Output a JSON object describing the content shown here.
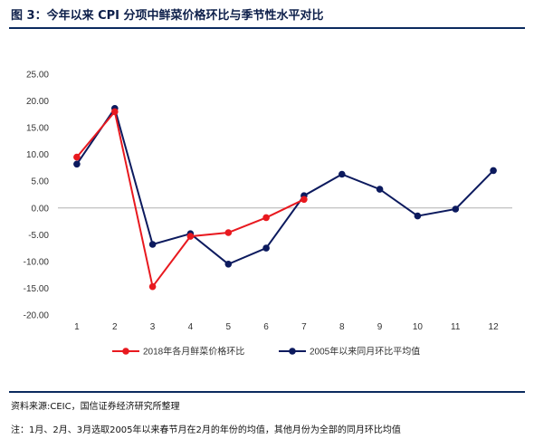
{
  "figure": {
    "title": "图 3：今年以来 CPI 分项中鲜菜价格环比与季节性水平对比"
  },
  "chart_data": {
    "type": "line",
    "x": [
      "1",
      "2",
      "3",
      "4",
      "5",
      "6",
      "7",
      "8",
      "9",
      "10",
      "11",
      "12"
    ],
    "ylim": [
      -20,
      25
    ],
    "yticks": [
      "25.00",
      "20.00",
      "15.00",
      "10.00",
      "5.00",
      "0.00",
      "-5.00",
      "-10.00",
      "-15.00",
      "-20.00"
    ],
    "ytick_values": [
      25,
      20,
      15,
      10,
      5,
      0,
      -5,
      -10,
      -15,
      -20
    ],
    "grid": false,
    "legend_position": "bottom",
    "series": [
      {
        "name": "2018年各月鲜菜价格环比",
        "color": "#e8191f",
        "values": [
          9.5,
          18.0,
          -14.7,
          -5.3,
          -4.6,
          -1.8,
          1.6,
          null,
          null,
          null,
          null,
          null
        ]
      },
      {
        "name": "2005年以来同月环比平均值",
        "color": "#0c1a5e",
        "values": [
          8.2,
          18.6,
          -6.8,
          -4.8,
          -10.5,
          -7.5,
          2.3,
          6.3,
          3.5,
          -1.5,
          -0.2,
          7.0
        ]
      }
    ]
  },
  "footer": {
    "source": "资料来源:CEIC，国信证券经济研究所整理",
    "note": "注：1月、2月、3月选取2005年以来春节月在2月的年份的均值，其他月份为全部的同月环比均值"
  }
}
